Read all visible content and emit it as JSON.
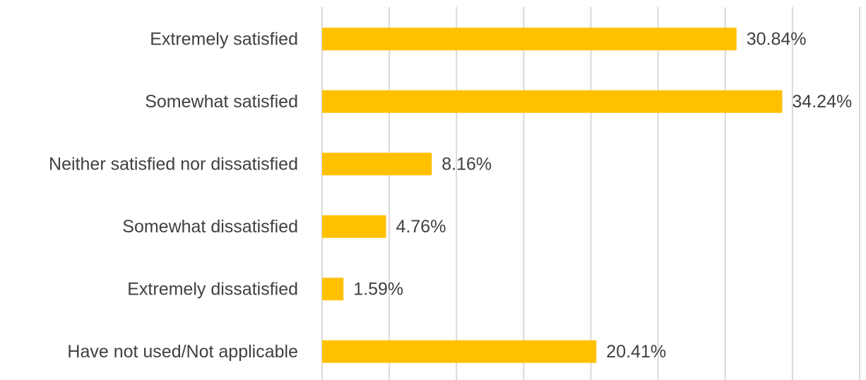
{
  "chart_data": {
    "type": "bar",
    "orientation": "horizontal",
    "title": "",
    "xlabel": "",
    "ylabel": "",
    "categories": [
      "Extremely satisfied",
      "Somewhat satisfied",
      "Neither satisfied nor dissatisfied",
      "Somewhat dissatisfied",
      "Extremely dissatisfied",
      "Have not used/Not applicable"
    ],
    "values": [
      30.84,
      34.24,
      8.16,
      4.76,
      1.59,
      20.41
    ],
    "value_labels": [
      "30.84%",
      "34.24%",
      "8.16%",
      "4.76%",
      "1.59%",
      "20.41%"
    ],
    "xlim": [
      0,
      40
    ],
    "grid_step": 5,
    "grid": true,
    "legend": "none",
    "bar_color": "#FFC000"
  }
}
